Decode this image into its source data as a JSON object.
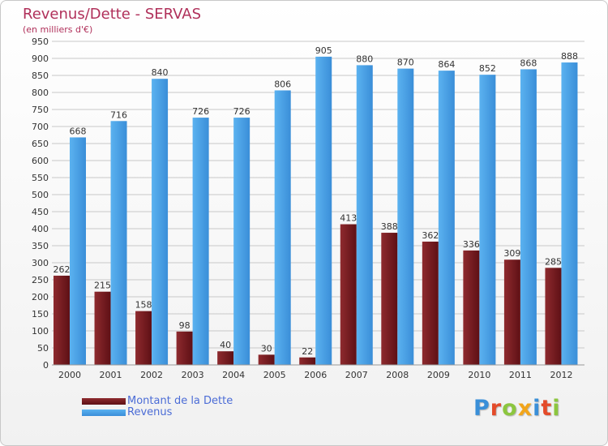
{
  "header": {
    "title": "Revenus/Dette - SERVAS",
    "subtitle": "(en milliers d'€)"
  },
  "logo": {
    "text": "Proxiti",
    "letter_colors": [
      "#3a8fd8",
      "#e44b2a",
      "#8cc63f",
      "#f2a51a",
      "#3a8fd8",
      "#e44b2a",
      "#8cc63f"
    ]
  },
  "colors": {
    "dette": "#7a1e22",
    "revenus": "#4ba3e8",
    "grid": "#c8c8c8",
    "title": "#b0305a",
    "legend_text": "#4b6cd6"
  },
  "chart_data": {
    "type": "bar",
    "title": "Revenus/Dette - SERVAS",
    "subtitle": "(en milliers d'€)",
    "categories": [
      "2000",
      "2001",
      "2002",
      "2003",
      "2004",
      "2005",
      "2006",
      "2007",
      "2008",
      "2009",
      "2010",
      "2011",
      "2012"
    ],
    "series": [
      {
        "name": "Montant de la Dette",
        "color": "#7a1e22",
        "values": [
          262,
          215,
          158,
          98,
          40,
          30,
          22,
          413,
          388,
          362,
          336,
          309,
          285
        ]
      },
      {
        "name": "Revenus",
        "color": "#4ba3e8",
        "values": [
          668,
          716,
          840,
          726,
          726,
          806,
          905,
          880,
          870,
          864,
          852,
          868,
          888
        ]
      }
    ],
    "ylim": [
      0,
      950
    ],
    "ytick_step": 50,
    "grid": true,
    "legend": "bottom-left"
  }
}
